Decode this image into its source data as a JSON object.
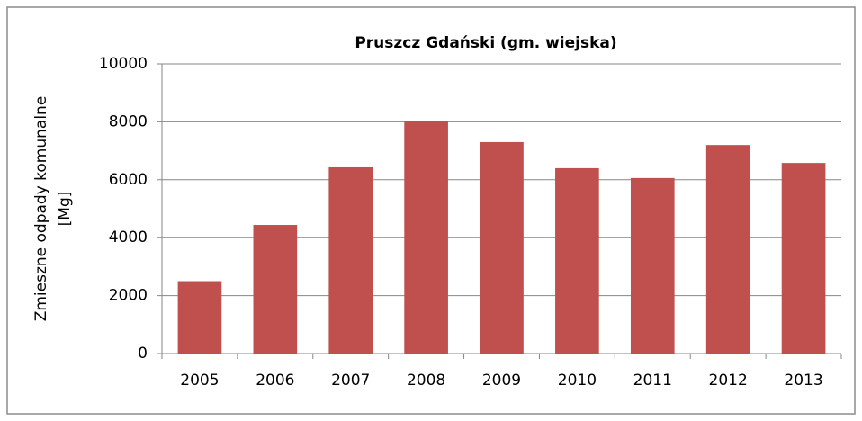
{
  "chart_data": {
    "type": "bar",
    "title": "Pruszcz Gdański (gm. wiejska)",
    "ylabel": [
      "Zmieszne odpady komunalne",
      "[Mg]"
    ],
    "categories": [
      "2005",
      "2006",
      "2007",
      "2008",
      "2009",
      "2010",
      "2011",
      "2012",
      "2013"
    ],
    "values": [
      2500,
      4440,
      6430,
      8030,
      7300,
      6400,
      6060,
      7200,
      6580
    ],
    "color": "#c0504d",
    "ylim": [
      0,
      10000
    ],
    "yticks": [
      0,
      2000,
      4000,
      6000,
      8000,
      10000
    ],
    "grid": true
  }
}
